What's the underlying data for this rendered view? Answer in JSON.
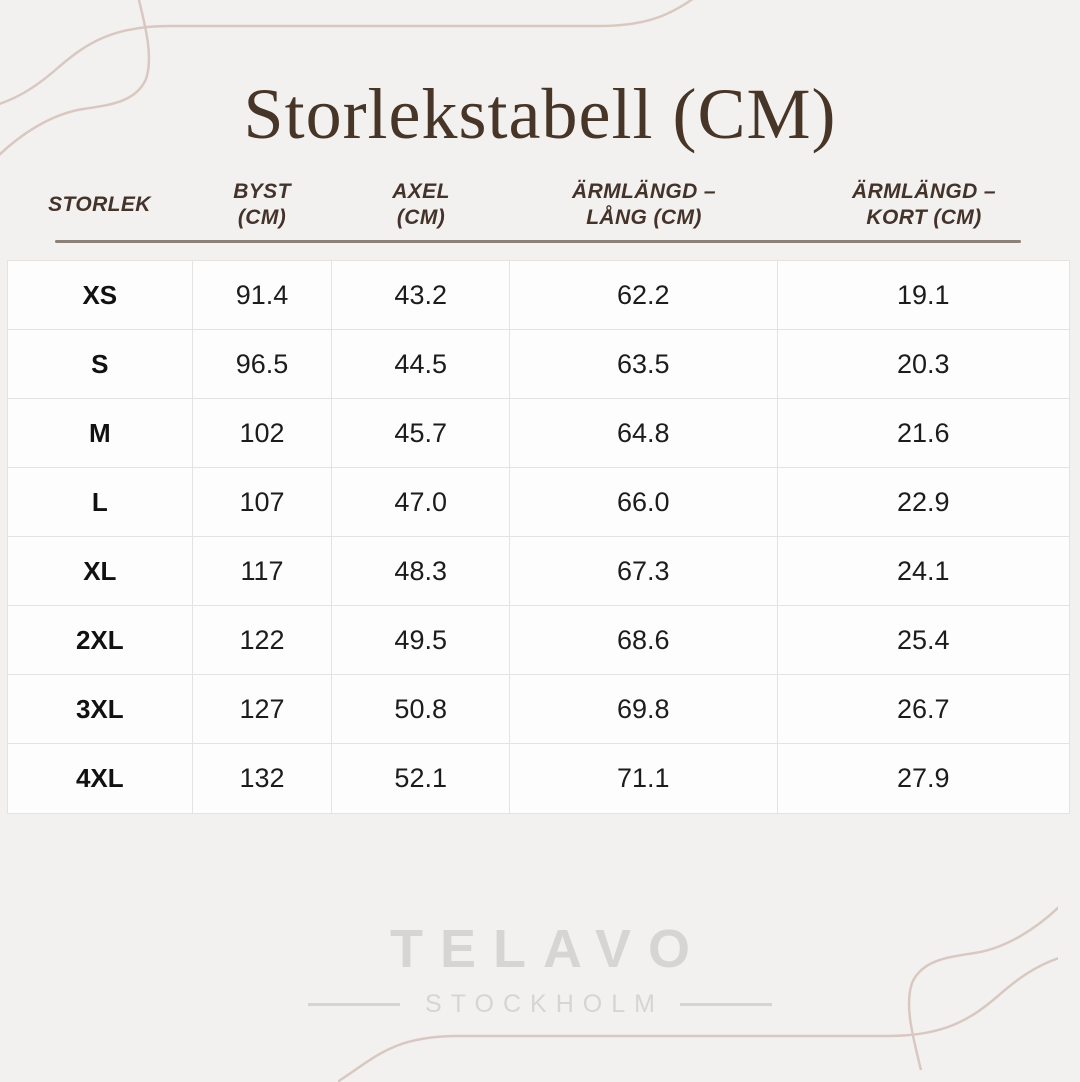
{
  "title": "Storlekstabell (CM)",
  "table": {
    "columns": [
      "STORLEK",
      "BYST\n(CM)",
      "AXEL\n(CM)",
      "ÄRMLÄNGD –\nLÅNG (CM)",
      "ÄRMLÄNGD –\nKORT (CM)"
    ],
    "rows": [
      {
        "cells": [
          "XS",
          "91.4",
          "43.2",
          "62.2",
          "19.1"
        ]
      },
      {
        "cells": [
          "S",
          "96.5",
          "44.5",
          "63.5",
          "20.3"
        ]
      },
      {
        "cells": [
          "M",
          "102",
          "45.7",
          "64.8",
          "21.6"
        ]
      },
      {
        "cells": [
          "L",
          "107",
          "47.0",
          "66.0",
          "22.9"
        ]
      },
      {
        "cells": [
          "XL",
          "117",
          "48.3",
          "67.3",
          "24.1"
        ]
      },
      {
        "cells": [
          "2XL",
          "122",
          "49.5",
          "68.6",
          "25.4"
        ]
      },
      {
        "cells": [
          "3XL",
          "127",
          "50.8",
          "69.8",
          "26.7"
        ]
      },
      {
        "cells": [
          "4XL",
          "132",
          "52.1",
          "71.1",
          "27.9"
        ]
      }
    ]
  },
  "logo": {
    "brand": "TELAVO",
    "city": "STOCKHOLM"
  },
  "colors": {
    "background": "#f2f1ef",
    "title_text": "#473528",
    "header_text": "#44332a",
    "rule": "#8c8178",
    "cell_bg": "#fdfdfd",
    "cell_border": "#e4e3e1",
    "decor_line": "#d9c8c1",
    "logo_text": "#d6d5d3"
  }
}
